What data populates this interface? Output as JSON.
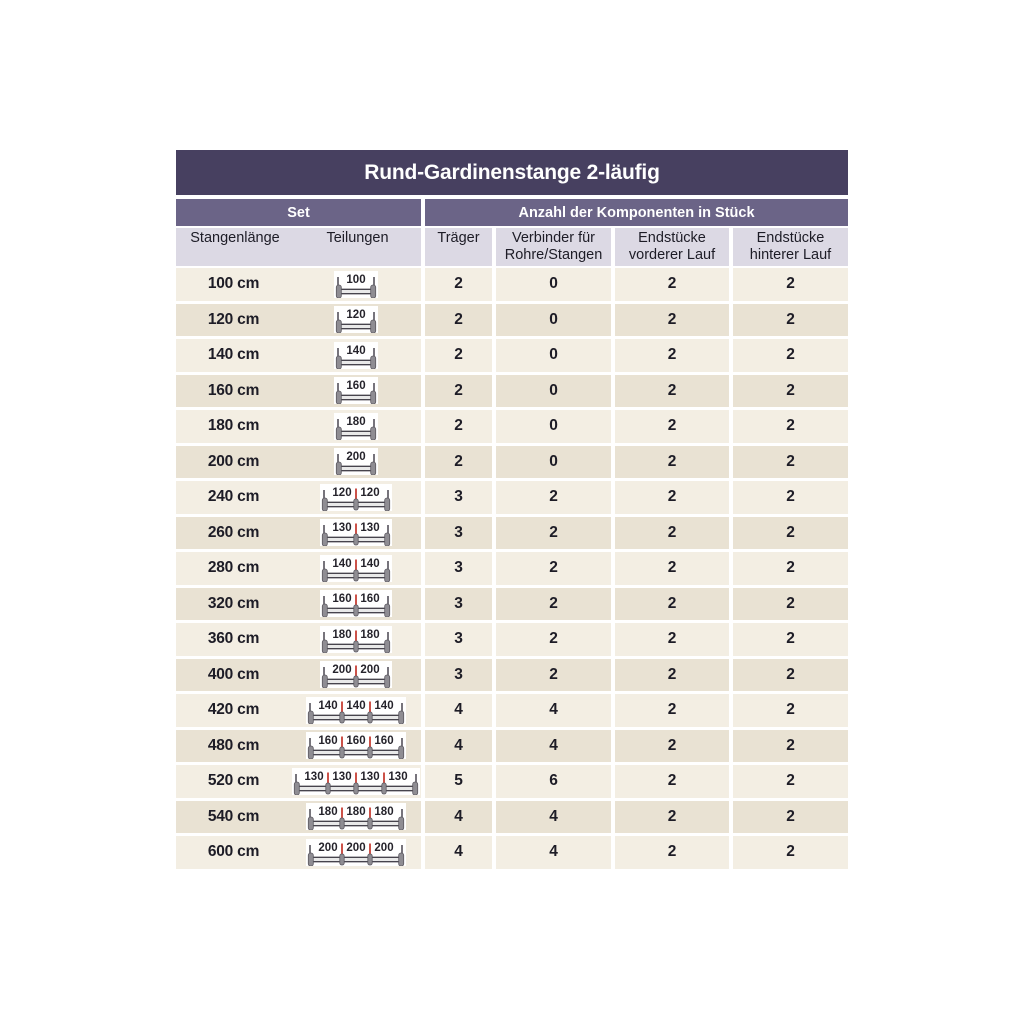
{
  "title": "Rund-Gardinenstange 2-läufig",
  "sections": {
    "set": "Set",
    "components": "Anzahl der Komponenten in Stück"
  },
  "columns": {
    "stangenlaenge": "Stangenlänge",
    "teilungen": "Teilungen",
    "traeger": "Träger",
    "verbinder_line1": "Verbinder für",
    "verbinder_line2": "Rohre/Stangen",
    "end_vorderer_line1": "Endstücke",
    "end_vorderer_line2": "vorderer Lauf",
    "end_hinterer_line1": "Endstücke",
    "end_hinterer_line2": "hinterer Lauf"
  },
  "colors": {
    "title_bg": "#474060",
    "section_bg": "#6b6487",
    "column_header_bg": "#dcd9e4",
    "row_odd_bg": "#f3eee3",
    "row_even_bg": "#e9e2d3",
    "header_text": "#ffffff",
    "body_text": "#1d1c26",
    "icon_bg": "#ffffff",
    "icon_number_text": "#25232b",
    "joint_tick_red": "#c63f35",
    "rod_line": "#3f3c45",
    "rod_fill": "#e9e9e9",
    "end_cap_gray": "#8f8d93",
    "end_cap_border": "#5a575f",
    "dim_tick": "#55525c"
  },
  "rows": [
    {
      "length": "100 cm",
      "segments": [
        "100"
      ],
      "traeger": "2",
      "verbinder": "0",
      "end_vorderer": "2",
      "end_hinterer": "2"
    },
    {
      "length": "120 cm",
      "segments": [
        "120"
      ],
      "traeger": "2",
      "verbinder": "0",
      "end_vorderer": "2",
      "end_hinterer": "2"
    },
    {
      "length": "140 cm",
      "segments": [
        "140"
      ],
      "traeger": "2",
      "verbinder": "0",
      "end_vorderer": "2",
      "end_hinterer": "2"
    },
    {
      "length": "160 cm",
      "segments": [
        "160"
      ],
      "traeger": "2",
      "verbinder": "0",
      "end_vorderer": "2",
      "end_hinterer": "2"
    },
    {
      "length": "180 cm",
      "segments": [
        "180"
      ],
      "traeger": "2",
      "verbinder": "0",
      "end_vorderer": "2",
      "end_hinterer": "2"
    },
    {
      "length": "200 cm",
      "segments": [
        "200"
      ],
      "traeger": "2",
      "verbinder": "0",
      "end_vorderer": "2",
      "end_hinterer": "2"
    },
    {
      "length": "240 cm",
      "segments": [
        "120",
        "120"
      ],
      "traeger": "3",
      "verbinder": "2",
      "end_vorderer": "2",
      "end_hinterer": "2"
    },
    {
      "length": "260 cm",
      "segments": [
        "130",
        "130"
      ],
      "traeger": "3",
      "verbinder": "2",
      "end_vorderer": "2",
      "end_hinterer": "2"
    },
    {
      "length": "280 cm",
      "segments": [
        "140",
        "140"
      ],
      "traeger": "3",
      "verbinder": "2",
      "end_vorderer": "2",
      "end_hinterer": "2"
    },
    {
      "length": "320 cm",
      "segments": [
        "160",
        "160"
      ],
      "traeger": "3",
      "verbinder": "2",
      "end_vorderer": "2",
      "end_hinterer": "2"
    },
    {
      "length": "360 cm",
      "segments": [
        "180",
        "180"
      ],
      "traeger": "3",
      "verbinder": "2",
      "end_vorderer": "2",
      "end_hinterer": "2"
    },
    {
      "length": "400 cm",
      "segments": [
        "200",
        "200"
      ],
      "traeger": "3",
      "verbinder": "2",
      "end_vorderer": "2",
      "end_hinterer": "2"
    },
    {
      "length": "420 cm",
      "segments": [
        "140",
        "140",
        "140"
      ],
      "traeger": "4",
      "verbinder": "4",
      "end_vorderer": "2",
      "end_hinterer": "2"
    },
    {
      "length": "480 cm",
      "segments": [
        "160",
        "160",
        "160"
      ],
      "traeger": "4",
      "verbinder": "4",
      "end_vorderer": "2",
      "end_hinterer": "2"
    },
    {
      "length": "520 cm",
      "segments": [
        "130",
        "130",
        "130",
        "130"
      ],
      "traeger": "5",
      "verbinder": "6",
      "end_vorderer": "2",
      "end_hinterer": "2"
    },
    {
      "length": "540 cm",
      "segments": [
        "180",
        "180",
        "180"
      ],
      "traeger": "4",
      "verbinder": "4",
      "end_vorderer": "2",
      "end_hinterer": "2"
    },
    {
      "length": "600 cm",
      "segments": [
        "200",
        "200",
        "200"
      ],
      "traeger": "4",
      "verbinder": "4",
      "end_vorderer": "2",
      "end_hinterer": "2"
    }
  ]
}
